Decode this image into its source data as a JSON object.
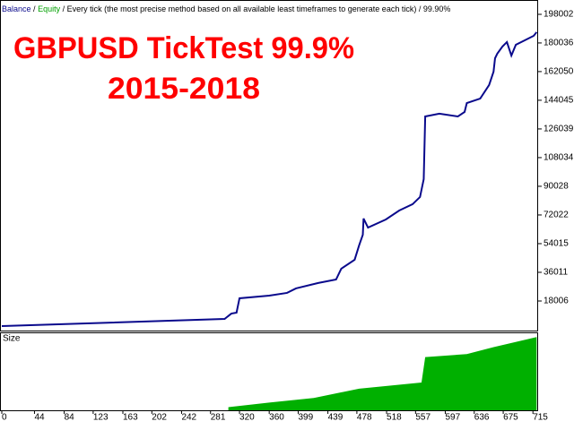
{
  "chart_data": {
    "type": "line",
    "legend": {
      "balance": "Balance",
      "equity": "Equity",
      "separator": "/",
      "mode": "Every tick (the most precise method based on all available least timeframes to generate each tick)",
      "quality": "99.90%"
    },
    "annotations": [
      "GBPUSD TickTest 99.9%",
      "2015-2018"
    ],
    "x": [
      0,
      300,
      309,
      316,
      320,
      360,
      384,
      396,
      426,
      450,
      457,
      475,
      481,
      486,
      487,
      493,
      517,
      535,
      553,
      563,
      568,
      570,
      589,
      614,
      623,
      626,
      644,
      656,
      662,
      664,
      667,
      674,
      680,
      686,
      692,
      704,
      716,
      720
    ],
    "series": [
      {
        "name": "Balance",
        "color": "#0a0a8c",
        "values": [
          2250,
          6750,
          10100,
          10700,
          19700,
          21400,
          23100,
          25900,
          29300,
          31500,
          38300,
          43900,
          52900,
          59600,
          69800,
          64100,
          69200,
          74800,
          78800,
          83300,
          94500,
          133900,
          135600,
          133900,
          136700,
          142300,
          145100,
          153600,
          162000,
          170400,
          173300,
          177800,
          180600,
          172100,
          178900,
          181700,
          184500,
          186800
        ]
      }
    ],
    "xlim": [
      0,
      722
    ],
    "xticks": [
      0,
      44,
      84,
      123,
      163,
      202,
      242,
      281,
      320,
      360,
      399,
      439,
      478,
      518,
      557,
      597,
      636,
      675,
      715
    ],
    "ylim": [
      0,
      207000
    ],
    "yticks": [
      18006,
      36011,
      54015,
      72022,
      90028,
      108034,
      126039,
      144045,
      162050,
      180036,
      198002
    ],
    "size_panel": {
      "label": "Size",
      "color": "#00b000",
      "x": [
        305,
        360,
        420,
        481,
        565,
        570,
        626,
        662,
        720
      ],
      "values": [
        4,
        10,
        16,
        28,
        36,
        69,
        73,
        82,
        95
      ],
      "ylim": [
        0,
        100
      ]
    }
  }
}
